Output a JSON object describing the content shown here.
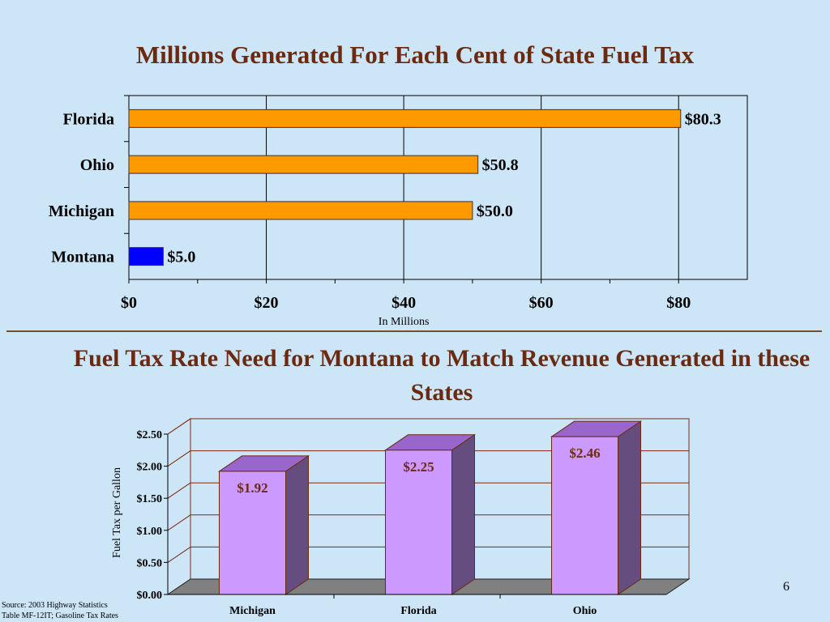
{
  "titles": {
    "top": "Millions Generated For Each Cent of State Fuel Tax",
    "bottom": "Fuel Tax Rate Need for Montana to Match Revenue Generated in these States"
  },
  "chart_data": [
    {
      "type": "bar",
      "orientation": "horizontal",
      "title": "Millions Generated For Each Cent of State Fuel Tax",
      "categories": [
        "Florida",
        "Ohio",
        "Michigan",
        "Montana"
      ],
      "values": [
        80.3,
        50.8,
        50.0,
        5.0
      ],
      "data_labels": [
        "$80.3",
        "$50.8",
        "$50.0",
        "$5.0"
      ],
      "bar_colors": [
        "#ff9900",
        "#ff9900",
        "#ff9900",
        "#0000ff"
      ],
      "xlabel": "In Millions",
      "xlim": [
        0,
        90
      ],
      "xticks": [
        0,
        20,
        40,
        60,
        80
      ],
      "xtick_labels": [
        "$0",
        "$20",
        "$40",
        "$60",
        "$80"
      ],
      "grid": "vertical"
    },
    {
      "type": "bar",
      "style": "3d",
      "title": "Fuel Tax Rate Need for Montana to Match Revenue Generated in these States",
      "categories": [
        "Michigan",
        "Florida",
        "Ohio"
      ],
      "values": [
        1.92,
        2.25,
        2.46
      ],
      "data_labels": [
        "$1.92",
        "$2.25",
        "$2.46"
      ],
      "bar_color": "#cc99ff",
      "ylabel": "Fuel Tax per Gallon",
      "ylim": [
        0,
        2.5
      ],
      "yticks": [
        0,
        0.5,
        1.0,
        1.5,
        2.0,
        2.5
      ],
      "ytick_labels": [
        "$0.00",
        "$0.50",
        "$1.00",
        "$1.50",
        "$2.00",
        "$2.50"
      ],
      "grid": "horizontal"
    }
  ],
  "footer": {
    "source_line1": "Source: 2003 Highway Statistics",
    "source_line2": "Table MF-12IT; Gasoline Tax Rates",
    "page_number": "6"
  },
  "colors": {
    "background": "#cce6f8",
    "title": "#6b2a10",
    "bar_orange": "#ff9900",
    "bar_blue": "#0000ff",
    "bar_purple_front": "#cc99ff",
    "bar_purple_side": "#664d80",
    "bar_purple_top": "#9966cc",
    "floor": "#808080"
  }
}
